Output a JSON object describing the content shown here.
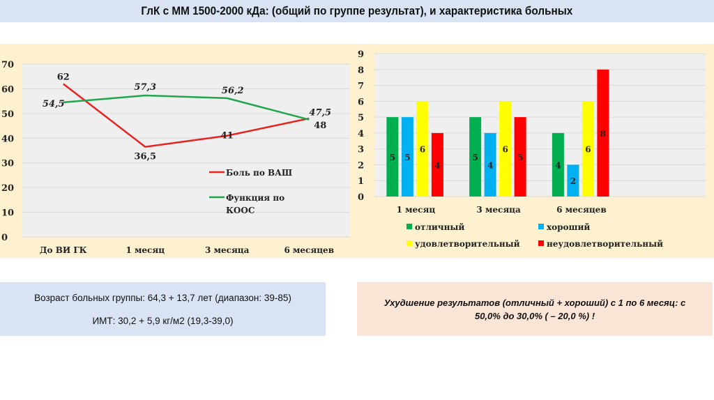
{
  "title": "ГлК с ММ 1500-2000 кДа: (общий по группе результат), и характеристика больных",
  "chart_data": [
    {
      "type": "line",
      "categories": [
        "До ВИ ГК",
        "1 месяц",
        "3 месяца",
        "6 месяцев"
      ],
      "ylim": [
        0,
        70
      ],
      "yticks": [
        0,
        10,
        20,
        30,
        40,
        50,
        60,
        70
      ],
      "grid": true,
      "legend": "right",
      "series": [
        {
          "name": "Боль по ВАШ",
          "color": "#e8231f",
          "values": [
            62,
            36.5,
            41,
            48
          ],
          "labels": [
            "62",
            "36,5",
            "41",
            "48"
          ]
        },
        {
          "name": "Функция по КООС",
          "color": "#1fa64a",
          "values": [
            54.5,
            57.3,
            56.2,
            47.5
          ],
          "labels": [
            "54,5",
            "57,3",
            "56,2",
            "47,5"
          ]
        }
      ]
    },
    {
      "type": "bar",
      "categories": [
        "1 месяц",
        "3 месяца",
        "6 месяцев"
      ],
      "ylim": [
        0,
        9
      ],
      "yticks": [
        0,
        1,
        2,
        3,
        4,
        5,
        6,
        7,
        8,
        9
      ],
      "grid": true,
      "legend": "bottom",
      "series": [
        {
          "name": "отличный",
          "color": "#00b050",
          "values": [
            5,
            5,
            4
          ]
        },
        {
          "name": "хороший",
          "color": "#00b0f0",
          "values": [
            5,
            4,
            2
          ]
        },
        {
          "name": "удовлетворительный",
          "color": "#ffff00",
          "values": [
            6,
            6,
            6
          ]
        },
        {
          "name": "неудовлетворительный",
          "color": "#ff0000",
          "values": [
            4,
            5,
            8
          ]
        }
      ]
    }
  ],
  "info_left": {
    "age": "Возраст больных группы: 64,3 + 13,7 лет (диапазон: 39-85)",
    "bmi": "ИМТ: 30,2 + 5,9 кг/м2 (19,3-39,0)"
  },
  "info_right": {
    "text": "Ухудшение результатов (отличный + хороший) с 1 по 6 месяц: с 50,0% до 30,0% ( – 20,0 %) !"
  }
}
